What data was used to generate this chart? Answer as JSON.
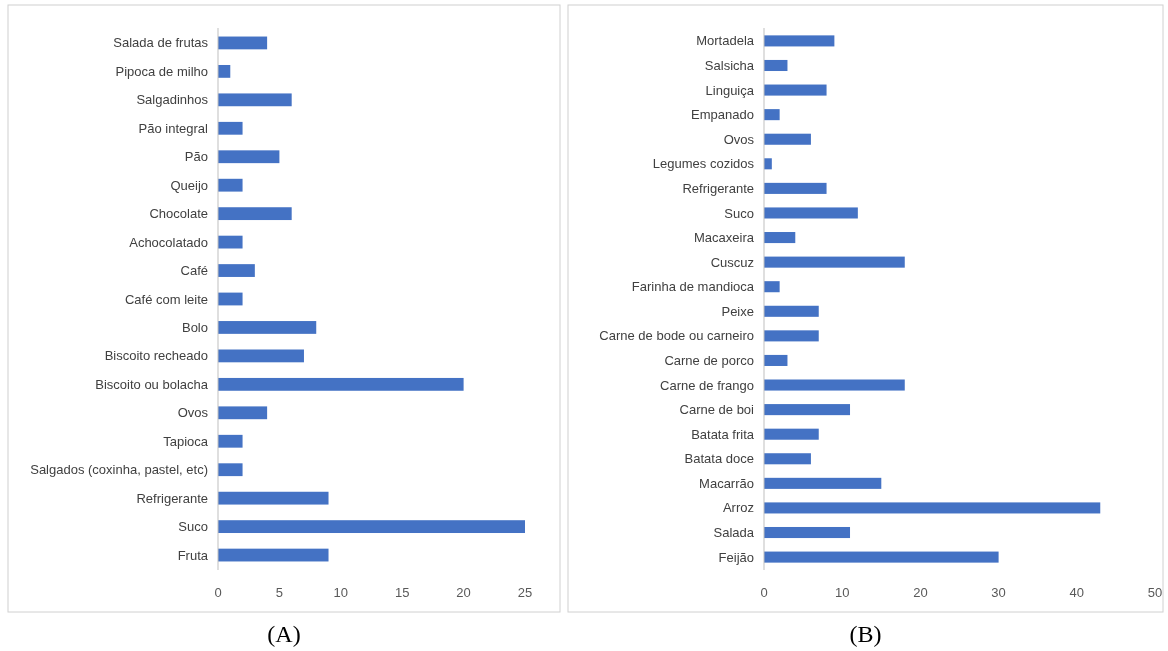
{
  "chart_data": [
    {
      "type": "bar",
      "orientation": "horizontal",
      "categories": [
        "Salada de frutas",
        "Pipoca de milho",
        "Salgadinhos",
        "Pão integral",
        "Pão",
        "Queijo",
        "Chocolate",
        "Achocolatado",
        "Café",
        "Café com leite",
        "Bolo",
        "Biscoito recheado",
        "Biscoito ou bolacha",
        "Ovos",
        "Tapioca",
        "Salgados (coxinha, pastel, etc)",
        "Refrigerante",
        "Suco",
        "Fruta"
      ],
      "values": [
        4,
        1,
        6,
        2,
        5,
        2,
        6,
        2,
        3,
        2,
        8,
        7,
        20,
        4,
        2,
        2,
        9,
        25,
        9
      ],
      "color": "#4472c4",
      "xlim": [
        0,
        25
      ],
      "xticks": [
        0,
        5,
        10,
        15,
        20,
        25
      ],
      "grid": false,
      "annotations": [
        "(A)"
      ]
    },
    {
      "type": "bar",
      "orientation": "horizontal",
      "categories": [
        "Mortadela",
        "Salsicha",
        "Linguiça",
        "Empanado",
        "Ovos",
        "Legumes cozidos",
        "Refrigerante",
        "Suco",
        "Macaxeira",
        "Cuscuz",
        "Farinha de mandioca",
        "Peixe",
        "Carne de bode ou carneiro",
        "Carne de porco",
        "Carne de frango",
        "Carne de boi",
        "Batata frita",
        "Batata doce",
        "Macarrão",
        "Arroz",
        "Salada",
        "Feijão"
      ],
      "values": [
        9,
        3,
        8,
        2,
        6,
        1,
        8,
        12,
        4,
        18,
        2,
        7,
        7,
        3,
        18,
        11,
        7,
        6,
        15,
        43,
        11,
        30
      ],
      "color": "#4472c4",
      "xlim": [
        0,
        50
      ],
      "xticks": [
        0,
        10,
        20,
        30,
        40,
        50
      ],
      "grid": false,
      "annotations": [
        "(B)"
      ]
    }
  ]
}
